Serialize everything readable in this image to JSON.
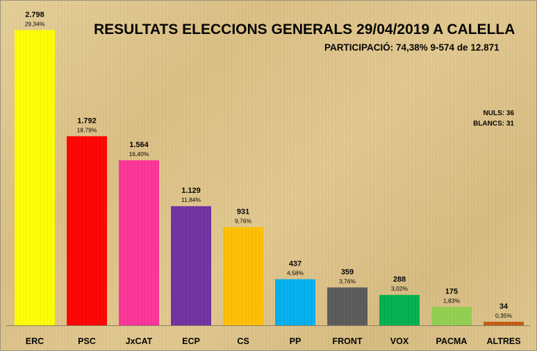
{
  "chart_data": {
    "type": "bar",
    "title": "RESULTATS ELECCIONS GENERALS 29/04/2019  A CALELLA",
    "subtitle": "PARTICIPACIÓ: 74,38% 9-574 de 12.871",
    "annotations": [
      "NULS: 36",
      "BLANCS: 31"
    ],
    "categories": [
      "ERC",
      "PSC",
      "JxCAT",
      "ECP",
      "CS",
      "PP",
      "FRONT",
      "VOX",
      "PACMA",
      "ALTRES"
    ],
    "values": [
      2798,
      1792,
      1564,
      1129,
      931,
      437,
      359,
      288,
      175,
      34
    ],
    "value_labels": [
      "2.798",
      "1.792",
      "1.564",
      "1.129",
      "931",
      "437",
      "359",
      "288",
      "175",
      "34"
    ],
    "percent_labels": [
      "29,34%",
      "18,79%",
      "16,40%",
      "11,84%",
      "9,76%",
      "4,58%",
      "3,76%",
      "3,02%",
      "1,83%",
      "0,35%"
    ],
    "colors": [
      "#ffff00",
      "#ff0000",
      "#ff3399",
      "#7030a0",
      "#ffc000",
      "#00b0f0",
      "#595959",
      "#00b050",
      "#92d050",
      "#c55a11"
    ],
    "ylim": [
      0,
      2800
    ],
    "grid": false,
    "legend": "none"
  }
}
